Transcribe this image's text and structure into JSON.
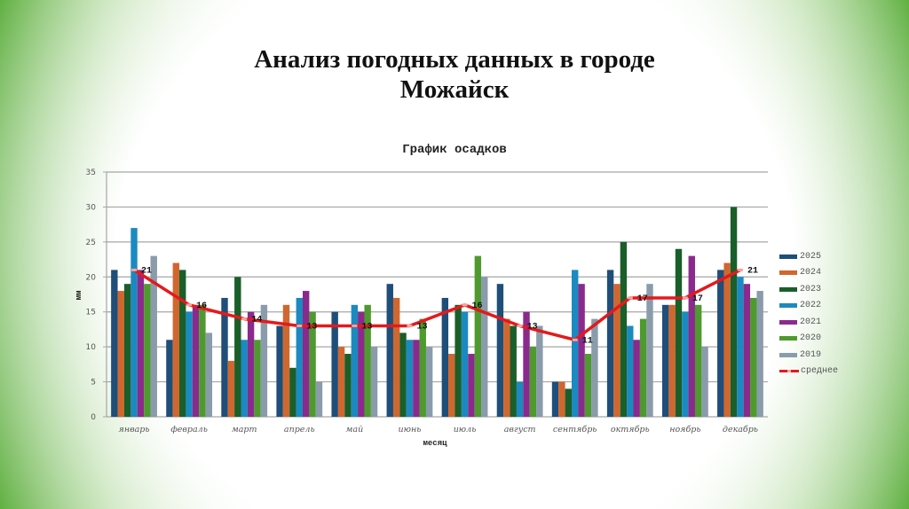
{
  "slide": {
    "title_line1": "Анализ погодных данных в городе",
    "title_line2": "Можайск"
  },
  "chart_data": {
    "type": "bar",
    "title": "График осадков",
    "xlabel": "месяц",
    "ylabel": "мм",
    "ylim": [
      0,
      35
    ],
    "yticks": [
      0,
      5,
      10,
      15,
      20,
      25,
      30,
      35
    ],
    "grid": true,
    "legend_position": "right",
    "categories": [
      "январь",
      "февраль",
      "март",
      "апрель",
      "май",
      "июнь",
      "июль",
      "август",
      "сентябрь",
      "октябрь",
      "ноябрь",
      "декабрь"
    ],
    "series": [
      {
        "name": "2025",
        "color": "#1f4e79",
        "values": [
          21,
          11,
          17,
          13,
          15,
          19,
          17,
          19,
          5,
          21,
          16,
          21
        ]
      },
      {
        "name": "2024",
        "color": "#d0672f",
        "values": [
          18,
          22,
          8,
          16,
          10,
          17,
          9,
          14,
          5,
          19,
          16,
          22
        ]
      },
      {
        "name": "2023",
        "color": "#1a5e2a",
        "values": [
          19,
          21,
          20,
          7,
          9,
          12,
          16,
          13,
          4,
          25,
          24,
          30
        ]
      },
      {
        "name": "2022",
        "color": "#1b8ac0",
        "values": [
          27,
          15,
          11,
          17,
          16,
          11,
          15,
          5,
          21,
          13,
          15,
          20
        ]
      },
      {
        "name": "2021",
        "color": "#8a2a8c",
        "values": [
          21,
          16,
          15,
          18,
          15,
          11,
          9,
          15,
          19,
          11,
          23,
          19
        ]
      },
      {
        "name": "2020",
        "color": "#4e9a2e",
        "values": [
          19,
          16,
          11,
          15,
          16,
          14,
          23,
          10,
          9,
          14,
          16,
          17
        ]
      },
      {
        "name": "2019",
        "color": "#8a9bab",
        "values": [
          23,
          12,
          16,
          5,
          10,
          10,
          20,
          13,
          14,
          19,
          10,
          18
        ]
      }
    ],
    "line_series": {
      "name": "среднее",
      "type": "line",
      "color": "#e31a1c",
      "values": [
        21,
        16,
        14,
        13,
        13,
        13,
        16,
        13,
        11,
        17,
        17,
        21
      ],
      "data_labels": [
        "21",
        "16",
        "14",
        "13",
        "13",
        "13",
        "16",
        "13",
        "11",
        "17",
        "17",
        "21"
      ]
    }
  }
}
